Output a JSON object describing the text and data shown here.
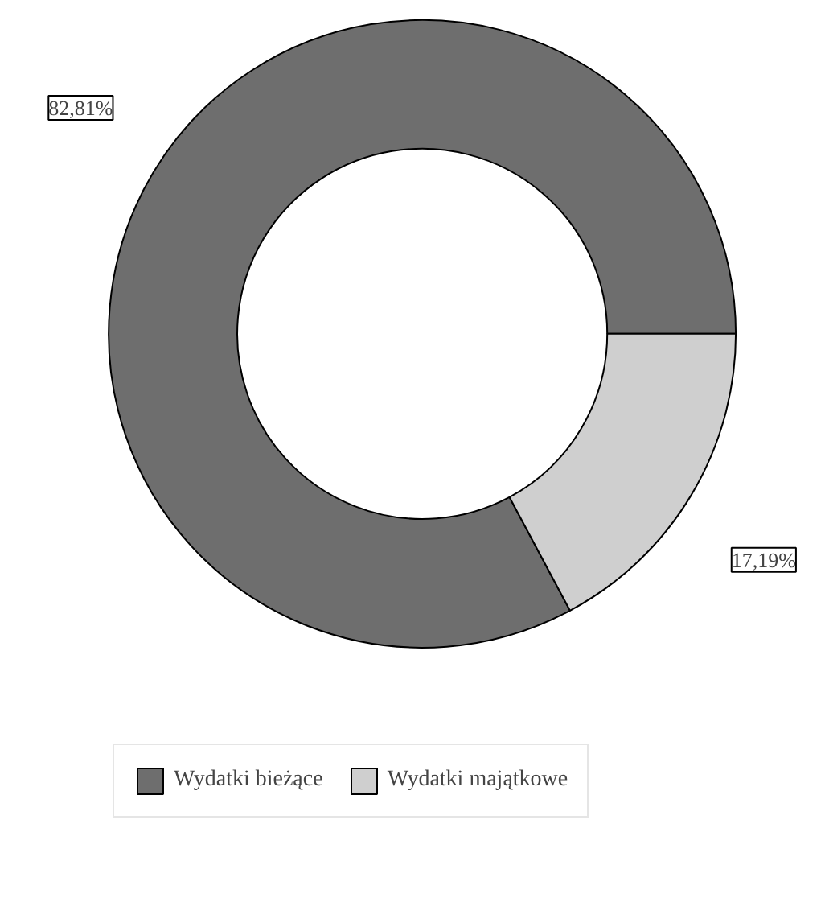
{
  "chart_data": {
    "type": "donut",
    "categories": [
      "Wydatki bieżące",
      "Wydatki majątkowe"
    ],
    "values": [
      82.81,
      17.19
    ],
    "colors": [
      "#6e6e6e",
      "#cfcfcf"
    ],
    "value_labels": [
      "82,81%",
      "17,19%"
    ],
    "legend": "bottom"
  }
}
